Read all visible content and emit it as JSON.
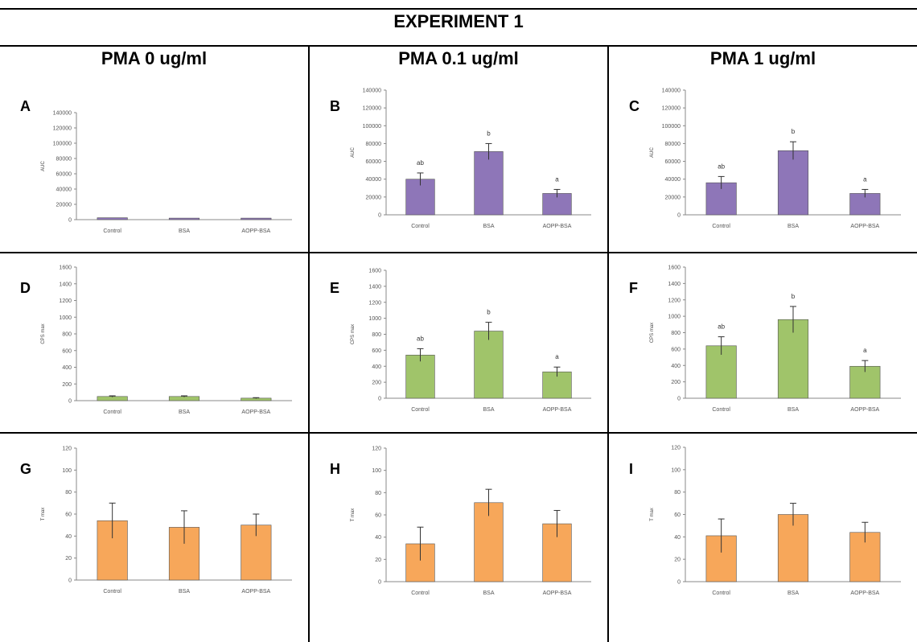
{
  "figure": {
    "title": "EXPERIMENT 1",
    "columns": [
      "PMA 0 ug/ml",
      "PMA 0.1 ug/ml",
      "PMA 1 ug/ml"
    ]
  },
  "colors": {
    "purple": "#8e76b8",
    "green": "#a0c46a",
    "orange": "#f7a75a",
    "bar_outline": "#555555"
  },
  "chart_data": [
    {
      "panel": "A",
      "type": "bar",
      "color": "purple",
      "ylabel": "AUC",
      "yticks": [
        "0",
        "20000",
        "40000",
        "60000",
        "80000",
        "100000",
        "120000",
        "140000"
      ],
      "ylim": [
        0,
        140000
      ],
      "categories": [
        "Control",
        "BSA",
        "AOPP-BSA"
      ],
      "values": [
        2500,
        2000,
        2000
      ],
      "errors": [
        0,
        0,
        0
      ],
      "letters": [
        "",
        "",
        ""
      ]
    },
    {
      "panel": "B",
      "type": "bar",
      "color": "purple",
      "ylabel": "AUC",
      "yticks": [
        "0",
        "20000",
        "40000",
        "60000",
        "80000",
        "100000",
        "120000",
        "140000"
      ],
      "ylim": [
        0,
        140000
      ],
      "categories": [
        "Control",
        "BSA",
        "AOPP-BSA"
      ],
      "values": [
        40000,
        71000,
        24000
      ],
      "errors": [
        7000,
        9000,
        4500
      ],
      "letters": [
        "ab",
        "b",
        "a"
      ]
    },
    {
      "panel": "C",
      "type": "bar",
      "color": "purple",
      "ylabel": "AUC",
      "yticks": [
        "0",
        "20000",
        "40000",
        "60000",
        "80000",
        "100000",
        "120000",
        "140000"
      ],
      "ylim": [
        0,
        140000
      ],
      "categories": [
        "Control",
        "BSA",
        "AOPP-BSA"
      ],
      "values": [
        36000,
        72000,
        24000
      ],
      "errors": [
        7000,
        10000,
        4500
      ],
      "letters": [
        "ab",
        "b",
        "a"
      ]
    },
    {
      "panel": "D",
      "type": "bar",
      "color": "green",
      "ylabel": "CPS max",
      "yticks": [
        "0",
        "200",
        "400",
        "600",
        "800",
        "1000",
        "1200",
        "1400",
        "1600"
      ],
      "ylim": [
        0,
        1600
      ],
      "categories": [
        "Control",
        "BSA",
        "AOPP-BSA"
      ],
      "values": [
        50,
        50,
        30
      ],
      "errors": [
        8,
        8,
        6
      ],
      "letters": [
        "",
        "",
        ""
      ]
    },
    {
      "panel": "E",
      "type": "bar",
      "color": "green",
      "ylabel": "CPS max",
      "yticks": [
        "0",
        "200",
        "400",
        "600",
        "800",
        "1000",
        "1200",
        "1400",
        "1600"
      ],
      "ylim": [
        0,
        1600
      ],
      "categories": [
        "Control",
        "BSA",
        "AOPP-BSA"
      ],
      "values": [
        540,
        840,
        330
      ],
      "errors": [
        80,
        110,
        60
      ],
      "letters": [
        "ab",
        "b",
        "a"
      ]
    },
    {
      "panel": "F",
      "type": "bar",
      "color": "green",
      "ylabel": "CPS max",
      "yticks": [
        "0",
        "200",
        "400",
        "600",
        "800",
        "1000",
        "1200",
        "1400",
        "1600"
      ],
      "ylim": [
        0,
        1600
      ],
      "categories": [
        "Control",
        "BSA",
        "AOPP-BSA"
      ],
      "values": [
        640,
        960,
        390
      ],
      "errors": [
        110,
        160,
        70
      ],
      "letters": [
        "ab",
        "b",
        "a"
      ]
    },
    {
      "panel": "G",
      "type": "bar",
      "color": "orange",
      "ylabel": "T max",
      "yticks": [
        "0",
        "20",
        "40",
        "60",
        "80",
        "100",
        "120"
      ],
      "ylim": [
        0,
        120
      ],
      "categories": [
        "Control",
        "BSA",
        "AOPP-BSA"
      ],
      "values": [
        54,
        48,
        50
      ],
      "errors": [
        16,
        15,
        10
      ],
      "letters": [
        "",
        "",
        ""
      ]
    },
    {
      "panel": "H",
      "type": "bar",
      "color": "orange",
      "ylabel": "T max",
      "yticks": [
        "0",
        "20",
        "40",
        "60",
        "80",
        "100",
        "120"
      ],
      "ylim": [
        0,
        120
      ],
      "categories": [
        "Control",
        "BSA",
        "AOPP-BSA"
      ],
      "values": [
        34,
        71,
        52
      ],
      "errors": [
        15,
        12,
        12
      ],
      "letters": [
        "",
        "",
        ""
      ]
    },
    {
      "panel": "I",
      "type": "bar",
      "color": "orange",
      "ylabel": "T max",
      "yticks": [
        "0",
        "20",
        "40",
        "60",
        "80",
        "100",
        "120"
      ],
      "ylim": [
        0,
        120
      ],
      "categories": [
        "Control",
        "BSA",
        "AOPP-BSA"
      ],
      "values": [
        41,
        60,
        44
      ],
      "errors": [
        15,
        10,
        9
      ],
      "letters": [
        "",
        "",
        ""
      ]
    }
  ]
}
